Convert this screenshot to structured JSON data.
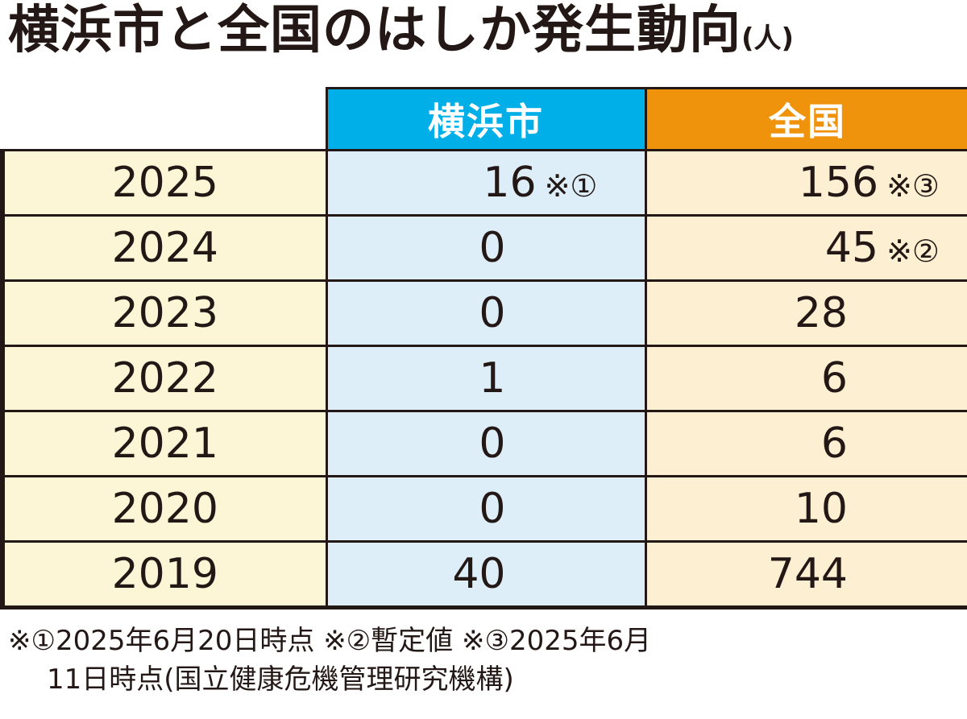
{
  "title": {
    "main": "横浜市と全国のはしか発生動向",
    "unit": "(人)"
  },
  "chart_data": {
    "type": "table",
    "columns": [
      "横浜市",
      "全国"
    ],
    "rows": [
      {
        "year": "2025",
        "yokohama": "16",
        "yokohama_note": "※①",
        "national": "156",
        "national_note": "※③"
      },
      {
        "year": "2024",
        "yokohama": "0",
        "yokohama_note": "",
        "national": "45",
        "national_note": "※②"
      },
      {
        "year": "2023",
        "yokohama": "0",
        "yokohama_note": "",
        "national": "28",
        "national_note": ""
      },
      {
        "year": "2022",
        "yokohama": "1",
        "yokohama_note": "",
        "national": "6",
        "national_note": ""
      },
      {
        "year": "2021",
        "yokohama": "0",
        "yokohama_note": "",
        "national": "6",
        "national_note": ""
      },
      {
        "year": "2020",
        "yokohama": "0",
        "yokohama_note": "",
        "national": "10",
        "national_note": ""
      },
      {
        "year": "2019",
        "yokohama": "40",
        "yokohama_note": "",
        "national": "744",
        "national_note": ""
      }
    ],
    "header_colors": {
      "yokohama": "#00aee8",
      "national": "#f0930c"
    }
  },
  "footnote": {
    "line1": "※①2025年6月20日時点 ※②暫定値 ※③2025年6月",
    "line2": "11日時点(国立健康危機管理研究機構)"
  }
}
